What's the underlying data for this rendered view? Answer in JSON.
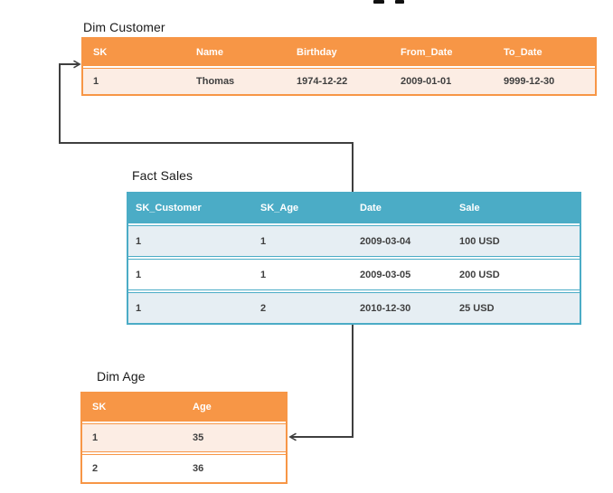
{
  "page": {
    "description": "Star schema diagram with one fact table and two dimension tables",
    "cropped_title_marks": "two descender fragments of a cut-off heading at top edge"
  },
  "colors": {
    "orange_accent": "#F79646",
    "orange_row_tint": "#FCEDE4",
    "teal_accent": "#4BACC6",
    "teal_row_tint": "#E6EEF3",
    "header_text": "#FFFFFF",
    "cell_text": "#3F3F3F",
    "title_text": "#1A1A1A",
    "connector": "#3F3F3F"
  },
  "tables": {
    "dim_customer": {
      "title": "Dim Customer",
      "theme": "orange",
      "columns": [
        "SK",
        "Name",
        "Birthday",
        "From_Date",
        "To_Date"
      ],
      "rows": [
        [
          "1",
          "Thomas",
          "1974-12-22",
          "2009-01-01",
          "9999-12-30"
        ]
      ]
    },
    "fact_sales": {
      "title": "Fact Sales",
      "theme": "teal",
      "columns": [
        "SK_Customer",
        "SK_Age",
        "Date",
        "Sale"
      ],
      "rows": [
        [
          "1",
          "1",
          "2009-03-04",
          "100 USD"
        ],
        [
          "1",
          "1",
          "2009-03-05",
          "200 USD"
        ],
        [
          "1",
          "2",
          "2010-12-30",
          "25 USD"
        ]
      ]
    },
    "dim_age": {
      "title": "Dim Age",
      "theme": "orange",
      "columns": [
        "SK",
        "Age"
      ],
      "rows": [
        [
          "1",
          "35"
        ],
        [
          "2",
          "36"
        ]
      ]
    }
  },
  "connectors": [
    {
      "name": "fact-sales-to-dim-customer-arrow",
      "points_at": "Dim Customer row SK=1"
    },
    {
      "name": "fact-sales-to-dim-age-arrow",
      "points_at": "Dim Age row SK=1"
    }
  ]
}
